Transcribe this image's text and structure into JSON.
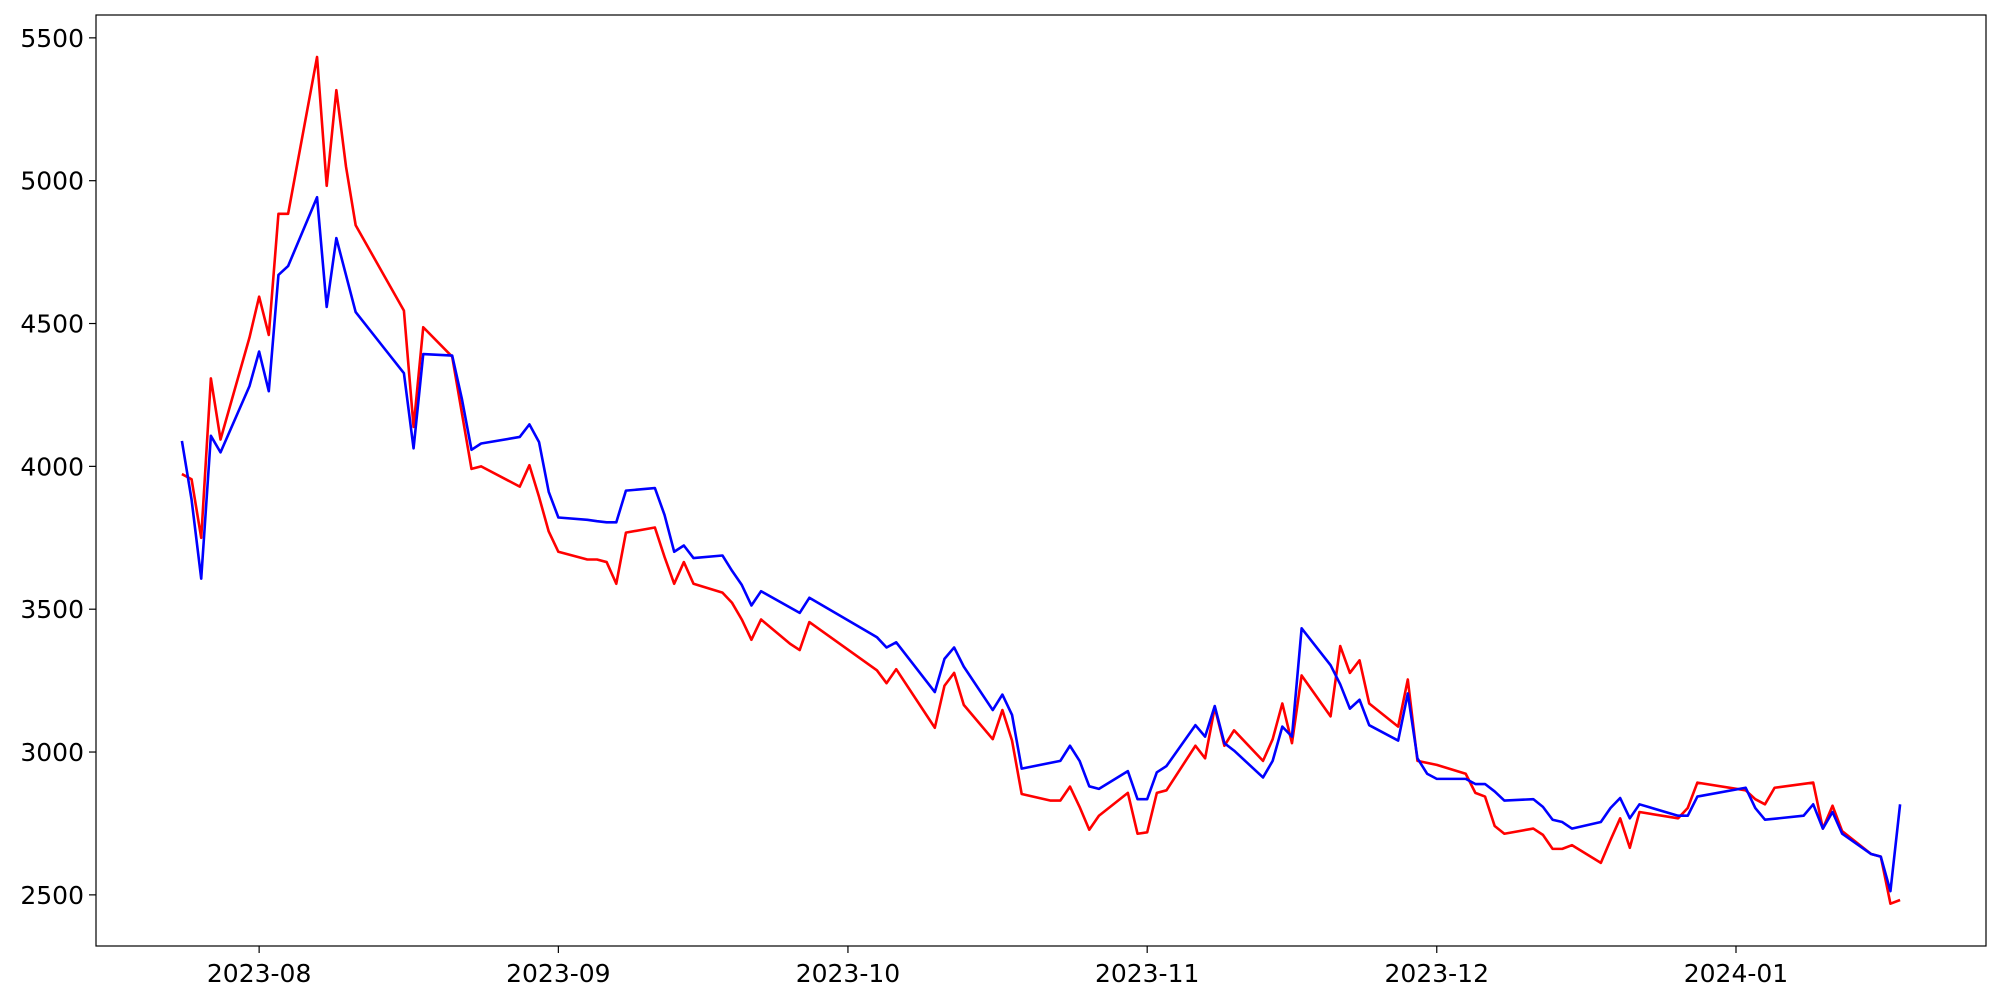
{
  "chart_data": {
    "type": "line",
    "xlim": [
      19553.1,
      19748.9
    ],
    "xticks": [
      {
        "value": 19570,
        "label": "2023-08"
      },
      {
        "value": 19601,
        "label": "2023-09"
      },
      {
        "value": 19631,
        "label": "2023-10"
      },
      {
        "value": 19662,
        "label": "2023-11"
      },
      {
        "value": 19692,
        "label": "2023-12"
      },
      {
        "value": 19723,
        "label": "2024-01"
      }
    ],
    "ylim": [
      2321,
      5580
    ],
    "yticks": [
      2500,
      3000,
      3500,
      4000,
      4500,
      5000,
      5500
    ],
    "grid": false,
    "series": [
      {
        "color": "#ff0000",
        "x": [
          19562,
          19563,
          19564,
          19565,
          19566,
          19569,
          19570,
          19571,
          19572,
          19573,
          19576,
          19577,
          19578,
          19579,
          19580,
          19585,
          19586,
          19587,
          19590,
          19592,
          19593,
          19597,
          19598,
          19599,
          19600,
          19601,
          19604,
          19605,
          19606,
          19607,
          19608,
          19611,
          19612,
          19613,
          19614,
          19615,
          19618,
          19619,
          19620,
          19621,
          19622,
          19625,
          19626,
          19627,
          19634,
          19635,
          19636,
          19640,
          19641,
          19642,
          19643,
          19646,
          19647,
          19648,
          19649,
          19652,
          19653,
          19654,
          19655,
          19656,
          19657,
          19660,
          19661,
          19662,
          19663,
          19664,
          19667,
          19668,
          19669,
          19670,
          19671,
          19674,
          19675,
          19676,
          19677,
          19678,
          19681,
          19682,
          19683,
          19684,
          19685,
          19688,
          19689,
          19690,
          19692,
          19695,
          19696,
          19697,
          19698,
          19699,
          19702,
          19703,
          19704,
          19705,
          19706,
          19709,
          19710,
          19711,
          19712,
          19713,
          19717,
          19718,
          19719,
          19724,
          19725,
          19726,
          19727,
          19731,
          19732,
          19733,
          19734,
          19737,
          19738,
          19739,
          19740
        ],
        "values": [
          3973,
          3955,
          3750,
          4308,
          4094,
          4451,
          4594,
          4460,
          4884,
          4884,
          5433,
          4982,
          5317,
          5049,
          4844,
          4545,
          4138,
          4487,
          4384,
          3991,
          4000,
          3929,
          4004,
          3893,
          3772,
          3701,
          3674,
          3674,
          3665,
          3589,
          3768,
          3786,
          3683,
          3589,
          3665,
          3589,
          3558,
          3522,
          3464,
          3393,
          3464,
          3379,
          3357,
          3455,
          3286,
          3241,
          3290,
          3085,
          3232,
          3277,
          3165,
          3045,
          3147,
          3040,
          2853,
          2830,
          2830,
          2879,
          2808,
          2728,
          2777,
          2857,
          2714,
          2719,
          2857,
          2866,
          3022,
          2978,
          3156,
          3022,
          3076,
          2969,
          3045,
          3170,
          3031,
          3268,
          3125,
          3371,
          3277,
          3321,
          3170,
          3089,
          3254,
          2969,
          2955,
          2924,
          2857,
          2844,
          2741,
          2714,
          2732,
          2710,
          2661,
          2661,
          2674,
          2612,
          2692,
          2768,
          2665,
          2790,
          2768,
          2804,
          2893,
          2866,
          2835,
          2817,
          2875,
          2893,
          2732,
          2812,
          2723,
          2643,
          2634,
          2469,
          2482
        ]
      },
      {
        "color": "#0000ff",
        "x": [
          19562,
          19563,
          19564,
          19565,
          19566,
          19569,
          19570,
          19571,
          19572,
          19573,
          19576,
          19577,
          19578,
          19580,
          19585,
          19586,
          19587,
          19590,
          19591,
          19592,
          19593,
          19597,
          19598,
          19599,
          19600,
          19601,
          19604,
          19605,
          19606,
          19607,
          19608,
          19611,
          19612,
          19613,
          19614,
          19615,
          19618,
          19619,
          19620,
          19621,
          19622,
          19626,
          19627,
          19634,
          19635,
          19636,
          19640,
          19641,
          19642,
          19643,
          19646,
          19647,
          19648,
          19649,
          19653,
          19654,
          19655,
          19656,
          19657,
          19660,
          19661,
          19662,
          19663,
          19664,
          19667,
          19668,
          19669,
          19670,
          19671,
          19674,
          19675,
          19676,
          19677,
          19678,
          19681,
          19682,
          19683,
          19684,
          19685,
          19688,
          19689,
          19690,
          19691,
          19692,
          19695,
          19696,
          19697,
          19698,
          19699,
          19702,
          19703,
          19704,
          19705,
          19706,
          19709,
          19710,
          19711,
          19712,
          19713,
          19717,
          19718,
          19719,
          19724,
          19725,
          19726,
          19730,
          19731,
          19732,
          19733,
          19734,
          19737,
          19738,
          19739,
          19740
        ],
        "values": [
          4089,
          3884,
          3607,
          4107,
          4049,
          4281,
          4402,
          4263,
          4670,
          4701,
          4942,
          4558,
          4799,
          4540,
          4326,
          4063,
          4393,
          4388,
          4237,
          4058,
          4080,
          4103,
          4147,
          4085,
          3911,
          3821,
          3813,
          3808,
          3804,
          3804,
          3915,
          3924,
          3830,
          3701,
          3723,
          3679,
          3688,
          3634,
          3585,
          3513,
          3563,
          3487,
          3540,
          3402,
          3366,
          3384,
          3210,
          3326,
          3366,
          3299,
          3147,
          3201,
          3130,
          2942,
          2969,
          3022,
          2969,
          2880,
          2871,
          2933,
          2835,
          2835,
          2929,
          2951,
          3094,
          3054,
          3161,
          3031,
          3005,
          2911,
          2969,
          3089,
          3054,
          3433,
          3304,
          3237,
          3152,
          3183,
          3094,
          3040,
          3205,
          2978,
          2924,
          2906,
          2906,
          2888,
          2888,
          2862,
          2830,
          2835,
          2808,
          2763,
          2755,
          2732,
          2755,
          2804,
          2839,
          2768,
          2817,
          2777,
          2777,
          2844,
          2875,
          2804,
          2763,
          2777,
          2817,
          2732,
          2790,
          2714,
          2643,
          2634,
          2513,
          2817
        ]
      }
    ]
  }
}
